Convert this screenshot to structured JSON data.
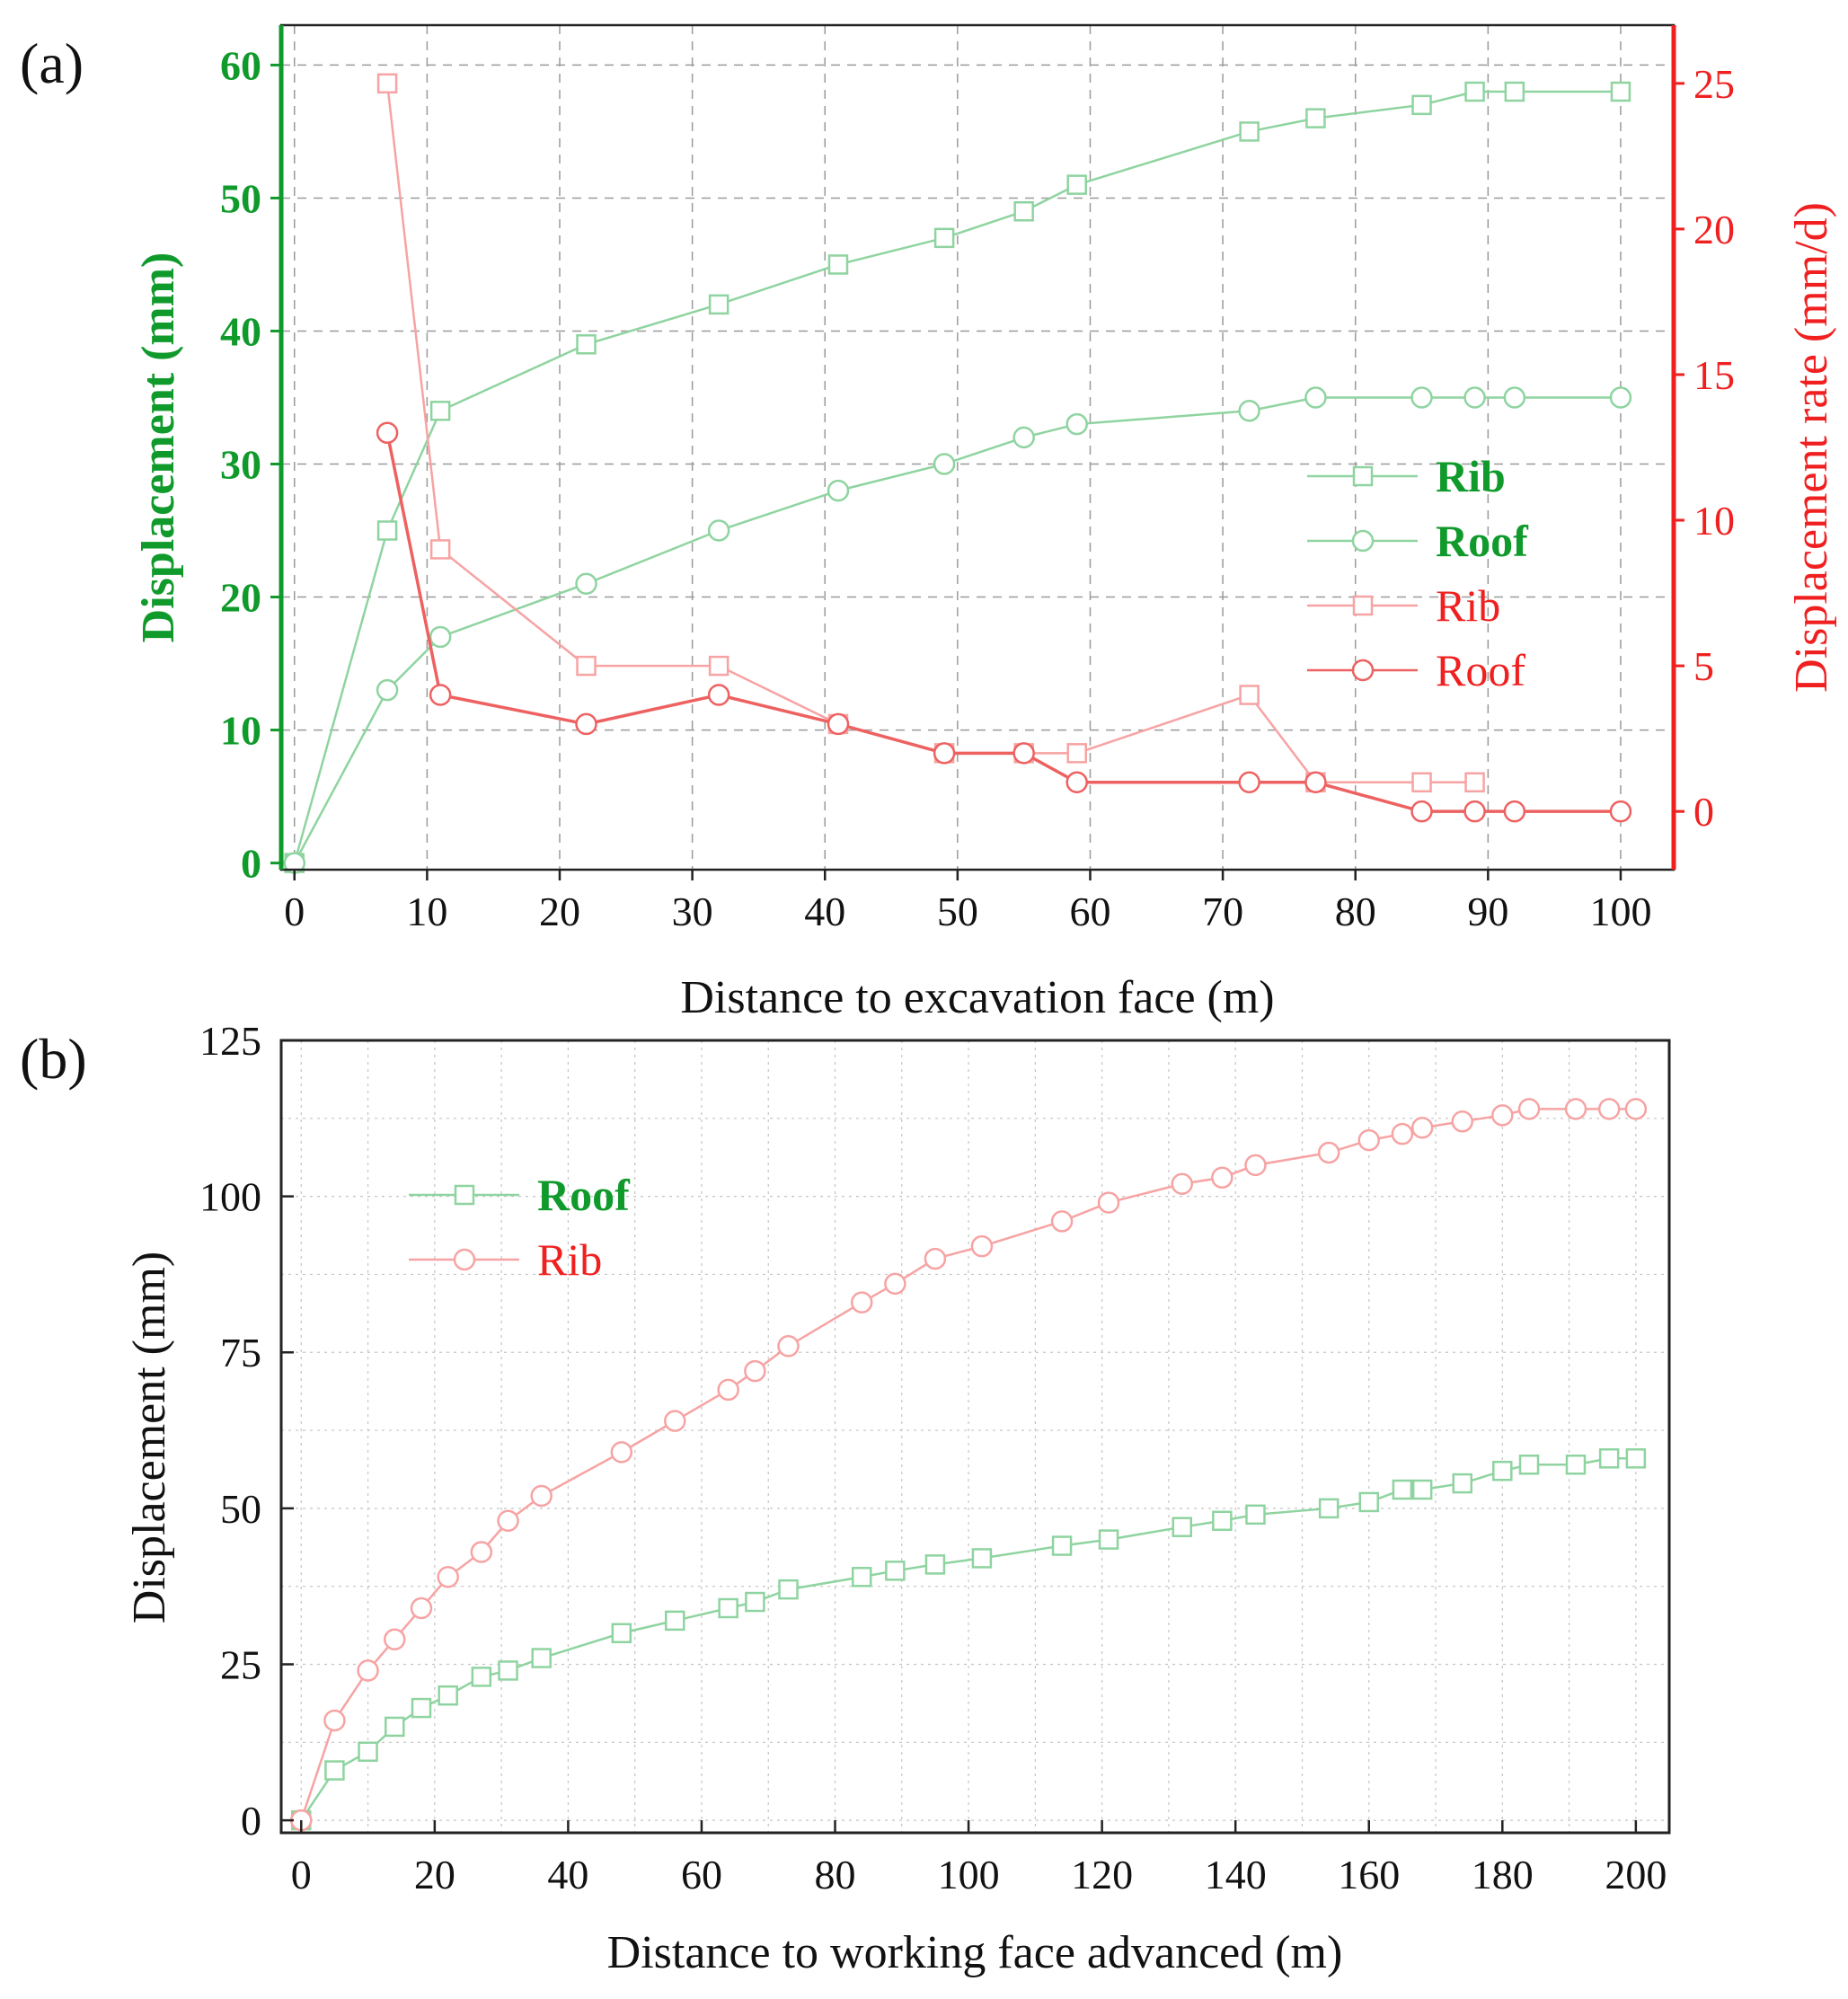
{
  "figure": {
    "panel_a_label": "(a)",
    "panel_b_label": "(b)"
  },
  "colors": {
    "green_line": "#8fd4a0",
    "green_text": "#109a2c",
    "red_light": "#f7a3a3",
    "red_dark": "#ee6161",
    "red_text": "#f02020",
    "axis": "#222222",
    "grid": "#9a9a9a"
  },
  "chart_data": [
    {
      "type": "line",
      "title": "",
      "xlabel": "Distance to excavation face (m)",
      "ylabel": "Displacement (mm)",
      "y2label": "Displacement rate (mm/d)",
      "xlim": [
        -1,
        104
      ],
      "ylim": [
        -0.5,
        63
      ],
      "y2lim": [
        -2,
        27
      ],
      "xticks": [
        0,
        10,
        20,
        30,
        40,
        50,
        60,
        70,
        80,
        90,
        100
      ],
      "yticks": [
        0,
        10,
        20,
        30,
        40,
        50,
        60
      ],
      "y2ticks": [
        0,
        5,
        10,
        15,
        20,
        25
      ],
      "grid": true,
      "legend_position": "right",
      "series": [
        {
          "name": "Rib",
          "axis": "left",
          "marker": "square",
          "color": "#8fd4a0",
          "label_color": "#109a2c",
          "x": [
            0,
            7,
            11,
            22,
            32,
            41,
            49,
            55,
            59,
            72,
            77,
            85,
            89,
            92,
            100
          ],
          "y": [
            0,
            25,
            34,
            39,
            42,
            45,
            47,
            49,
            51,
            55,
            56,
            57,
            58,
            58,
            58
          ]
        },
        {
          "name": "Roof",
          "axis": "left",
          "marker": "circle",
          "color": "#8fd4a0",
          "label_color": "#109a2c",
          "x": [
            0,
            7,
            11,
            22,
            32,
            41,
            49,
            55,
            59,
            72,
            77,
            85,
            89,
            92,
            100
          ],
          "y": [
            0,
            13,
            17,
            21,
            25,
            28,
            30,
            32,
            33,
            34,
            35,
            35,
            35,
            35,
            35
          ]
        },
        {
          "name": "Rib",
          "axis": "right",
          "marker": "square",
          "color": "#f7a3a3",
          "label_color": "#f02020",
          "x": [
            7,
            11,
            22,
            32,
            41,
            49,
            55,
            59,
            72,
            77,
            85,
            89
          ],
          "y": [
            25,
            9,
            5,
            5,
            3,
            2,
            2,
            2,
            4,
            1,
            1,
            1
          ]
        },
        {
          "name": "Roof",
          "axis": "right",
          "marker": "circle",
          "color": "#ee6161",
          "label_color": "#f02020",
          "x": [
            7,
            11,
            22,
            32,
            41,
            49,
            55,
            59,
            72,
            77,
            85,
            89,
            92,
            100
          ],
          "y": [
            13,
            4,
            3,
            4,
            3,
            2,
            2,
            1,
            1,
            1,
            0,
            0,
            0,
            0
          ]
        }
      ]
    },
    {
      "type": "line",
      "title": "",
      "xlabel": "Distance to working face advanced (m)",
      "ylabel": "Displacement (mm)",
      "xlim": [
        -3,
        205
      ],
      "ylim": [
        -2,
        125
      ],
      "xticks": [
        0,
        20,
        40,
        60,
        80,
        100,
        120,
        140,
        160,
        180,
        200
      ],
      "yticks": [
        0,
        25,
        50,
        75,
        100,
        125
      ],
      "grid": true,
      "legend_position": "top-left",
      "series": [
        {
          "name": "Roof",
          "marker": "square",
          "color": "#8fd4a0",
          "label_color": "#109a2c",
          "x": [
            0,
            5,
            10,
            14,
            18,
            22,
            27,
            31,
            36,
            48,
            56,
            64,
            68,
            73,
            84,
            89,
            95,
            102,
            114,
            121,
            132,
            138,
            143,
            154,
            160,
            165,
            168,
            174,
            180,
            184,
            191,
            196,
            200
          ],
          "y": [
            0,
            8,
            11,
            15,
            18,
            20,
            23,
            24,
            26,
            30,
            32,
            34,
            35,
            37,
            39,
            40,
            41,
            42,
            44,
            45,
            47,
            48,
            49,
            50,
            51,
            53,
            53,
            54,
            56,
            57,
            57,
            58,
            58
          ]
        },
        {
          "name": "Rib",
          "marker": "circle",
          "color": "#f7a3a3",
          "label_color": "#f02020",
          "x": [
            0,
            5,
            10,
            14,
            18,
            22,
            27,
            31,
            36,
            48,
            56,
            64,
            68,
            73,
            84,
            89,
            95,
            102,
            114,
            121,
            132,
            138,
            143,
            154,
            160,
            165,
            168,
            174,
            180,
            184,
            191,
            196,
            200
          ],
          "y": [
            0,
            16,
            24,
            29,
            34,
            39,
            43,
            48,
            52,
            59,
            64,
            69,
            72,
            76,
            83,
            86,
            90,
            92,
            96,
            99,
            102,
            103,
            105,
            107,
            109,
            110,
            111,
            112,
            113,
            114,
            114,
            114,
            114
          ]
        }
      ]
    }
  ]
}
